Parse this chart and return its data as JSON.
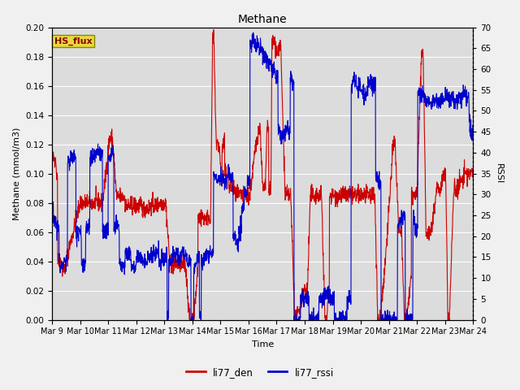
{
  "title": "Methane",
  "xlabel": "Time",
  "ylabel_left": "Methane (mmol/m3)",
  "ylabel_right": "RSSI",
  "legend_label1": "li77_den",
  "legend_label2": "li77_rssi",
  "annotation": "HS_flux",
  "xlim_days": [
    9,
    24
  ],
  "ylim_left": [
    0.0,
    0.2
  ],
  "ylim_right": [
    0,
    70
  ],
  "xtick_labels": [
    "Mar 9",
    "Mar 10",
    "Mar 11",
    "Mar 12",
    "Mar 13",
    "Mar 14",
    "Mar 15",
    "Mar 16",
    "Mar 17",
    "Mar 18",
    "Mar 19",
    "Mar 20",
    "Mar 21",
    "Mar 22",
    "Mar 23",
    "Mar 24"
  ],
  "yticks_left": [
    0.0,
    0.02,
    0.04,
    0.06,
    0.08,
    0.1,
    0.12,
    0.14,
    0.16,
    0.18,
    0.2
  ],
  "yticks_right": [
    0,
    5,
    10,
    15,
    20,
    25,
    30,
    35,
    40,
    45,
    50,
    55,
    60,
    65,
    70
  ],
  "color_red": "#cc0000",
  "color_blue": "#0000cc",
  "plot_bg_color": "#dcdcdc",
  "fig_bg_color": "#f0f0f0",
  "annotation_bg": "#e8d840",
  "annotation_text_color": "#8b0000",
  "grid_color": "#ffffff",
  "linewidth": 0.8
}
